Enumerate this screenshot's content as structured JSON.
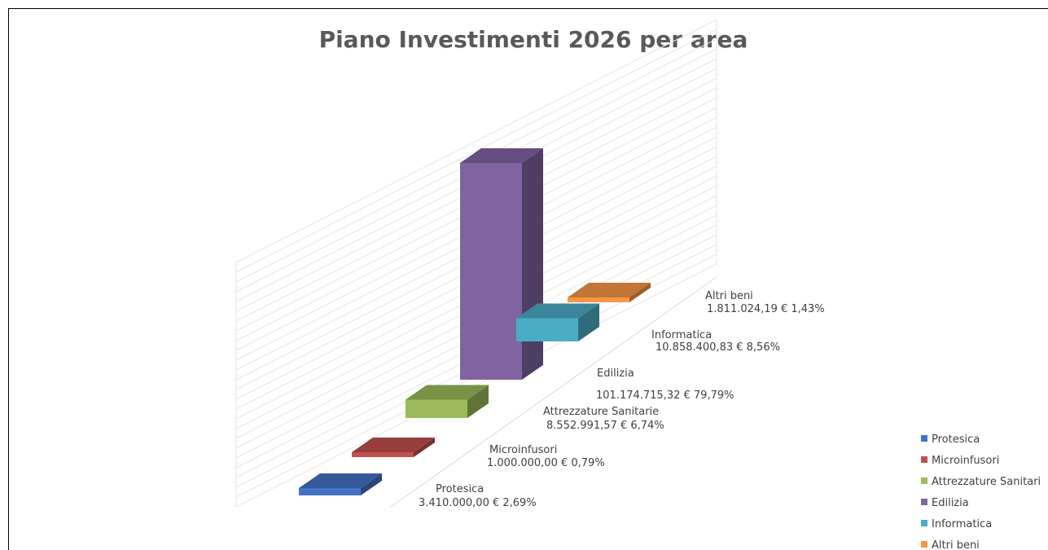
{
  "chart_data": {
    "type": "bar",
    "title": "Piano Investimenti 2026 per area",
    "categories": [
      "Protesica",
      "Microinfusori",
      "Attrezzature Sanitarie",
      "Edilizia",
      "Informatica",
      "Altri beni"
    ],
    "values": [
      3410000.0,
      1000000.0,
      8552991.57,
      101174715.32,
      10858400.83,
      1811024.19
    ],
    "value_labels": [
      "3.410.000,00 €",
      "1.000.000,00 €",
      "8.552.991,57 €",
      "101.174.715,32 €",
      "10.858.400,83 €",
      "1.811.024,19 €"
    ],
    "percent_labels": [
      "2,69%",
      "0,79%",
      "6,74%",
      "79,79%",
      "8,56%",
      "1,43%"
    ],
    "colors": [
      "#4472C4",
      "#C0504D",
      "#9BBB59",
      "#8064A2",
      "#4BACC6",
      "#F79646"
    ],
    "legend": {
      "position": "right",
      "entries": [
        "Protesica",
        "Microinfusori",
        "Attrezzature Sanitari",
        "Edilizia",
        "Informatica",
        "Altri beni"
      ]
    },
    "three_d": true,
    "grid": true
  }
}
